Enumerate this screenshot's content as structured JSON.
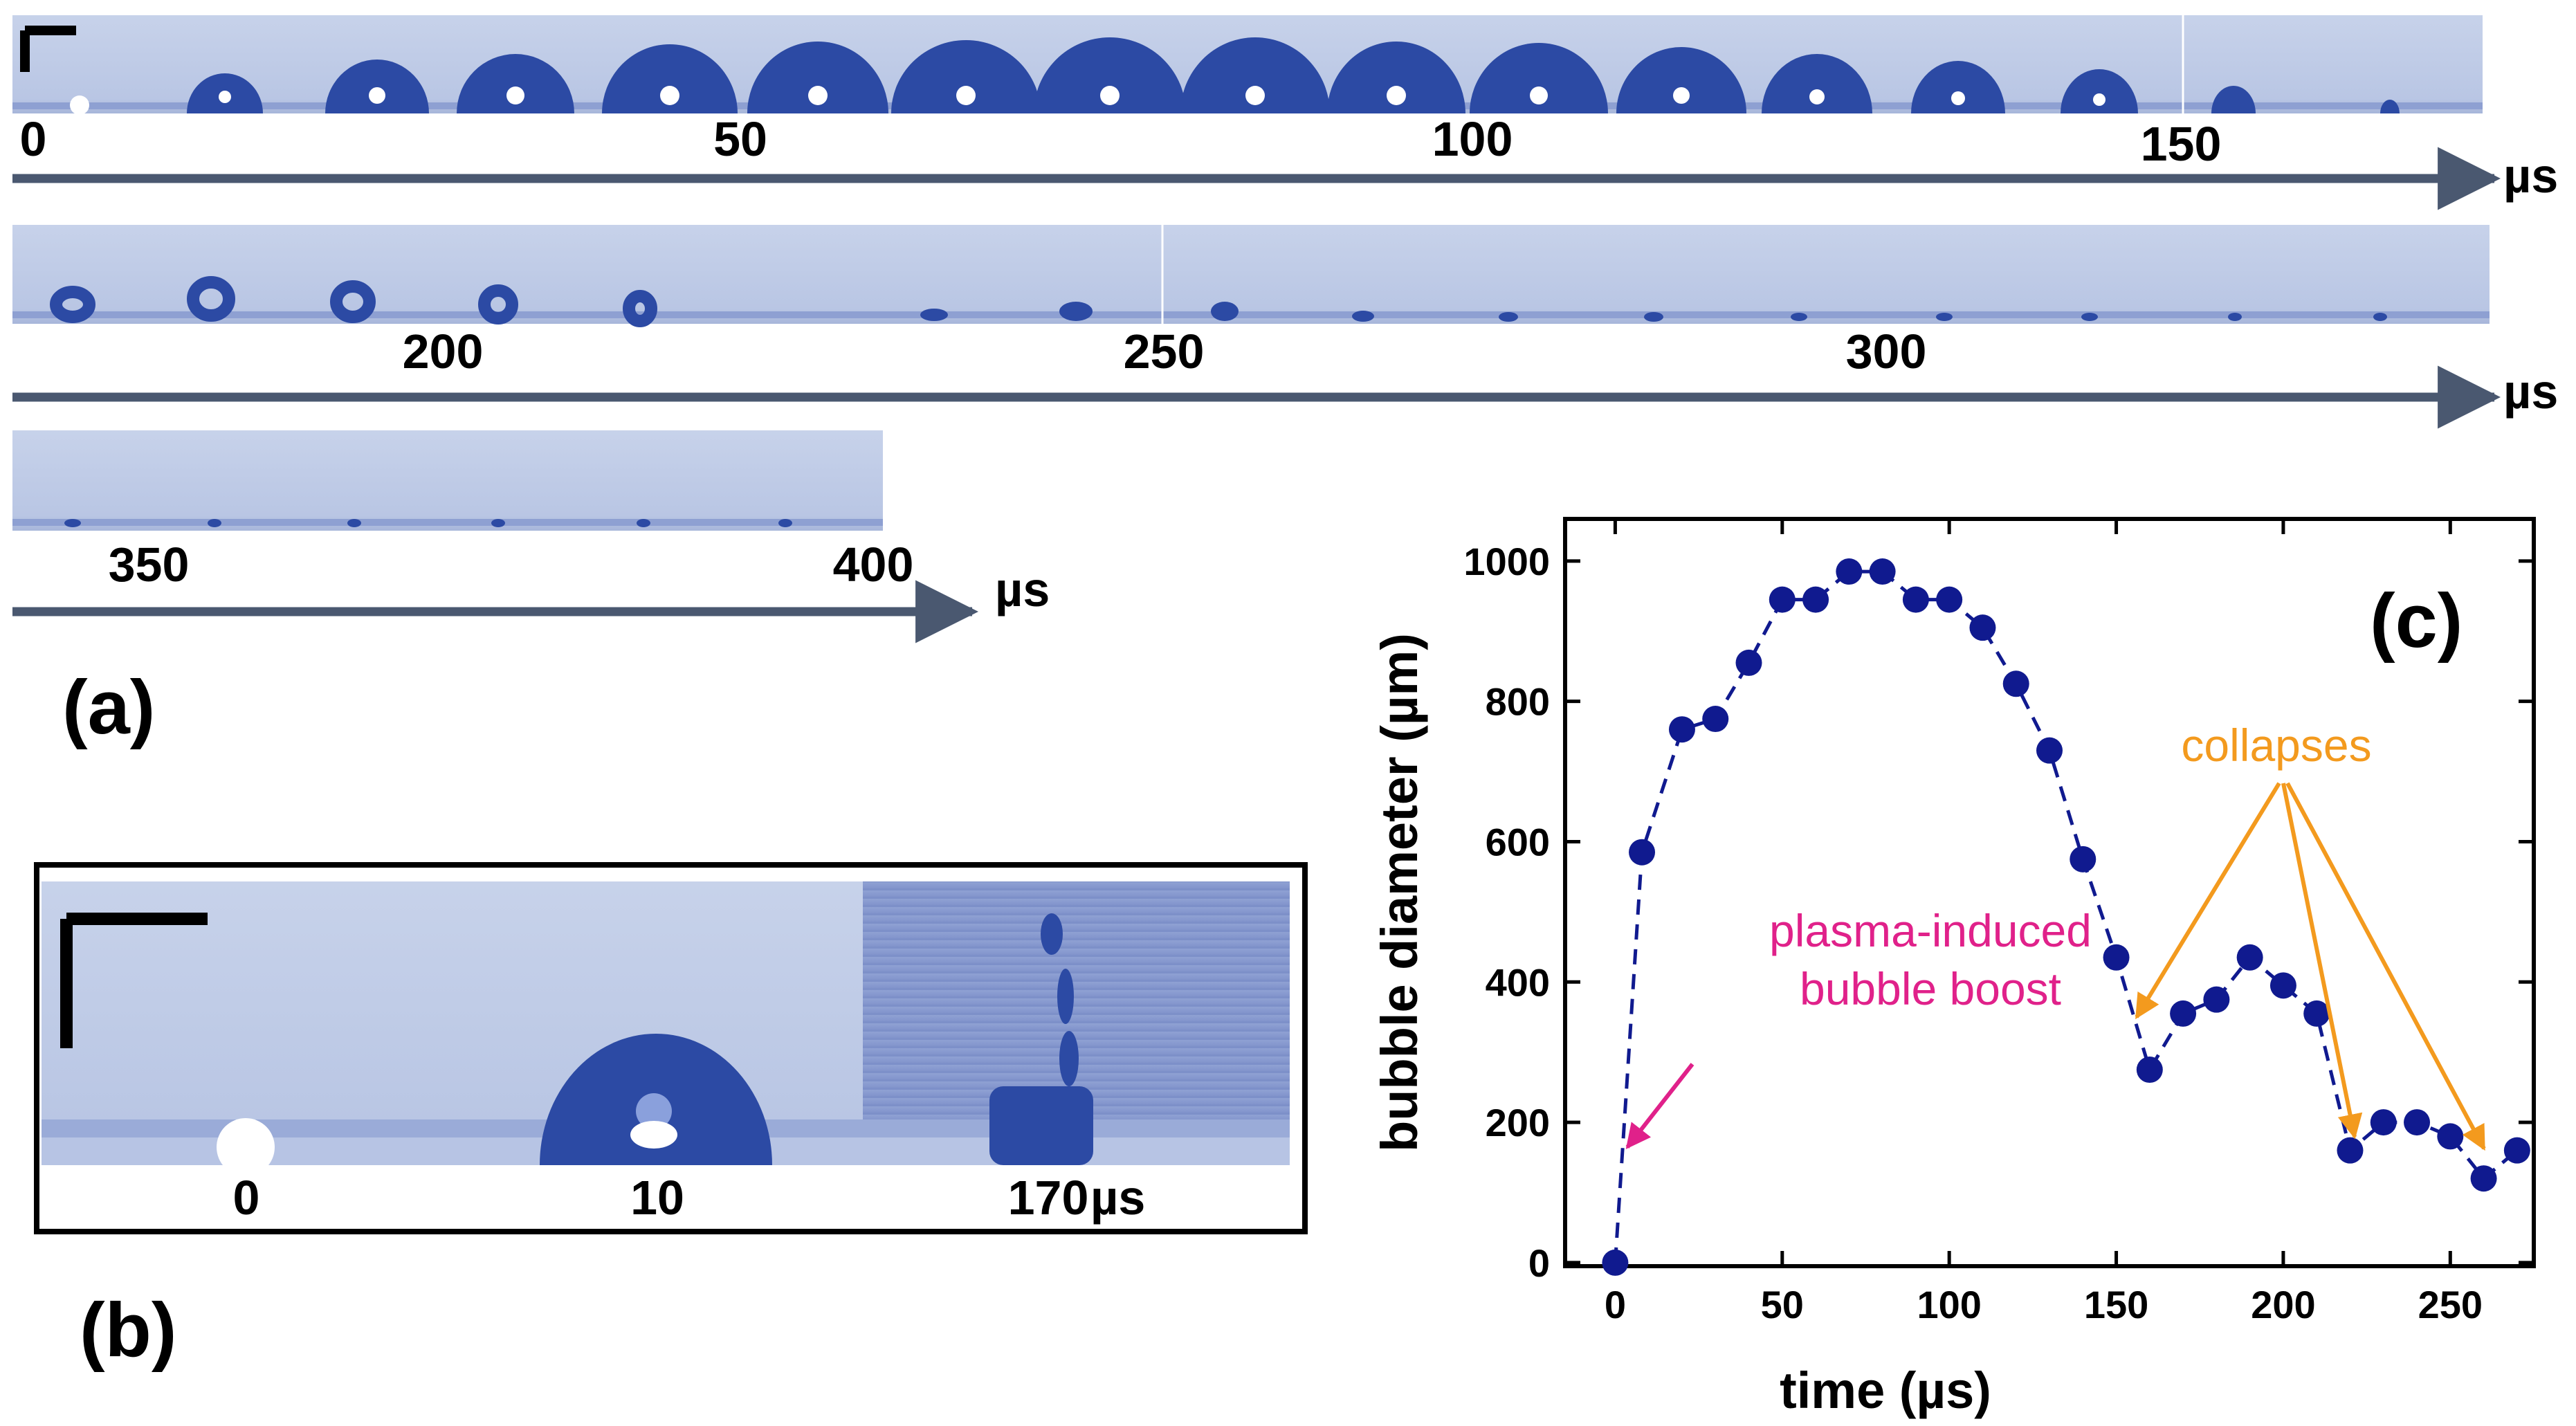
{
  "panel_a": {
    "label": "(a)",
    "unit": "µs",
    "rows": [
      {
        "ticks": [
          "0",
          "50",
          "100",
          "150"
        ]
      },
      {
        "ticks": [
          "200",
          "250",
          "300"
        ]
      },
      {
        "ticks": [
          "350",
          "400"
        ]
      }
    ]
  },
  "panel_b": {
    "label": "(b)",
    "frame_labels": [
      "0",
      "10",
      "170"
    ],
    "unit": "µs"
  },
  "colors": {
    "marker": "#101a8f",
    "arrow_axis": "#4a5870",
    "annotation_orange": "#f39a1e",
    "annotation_pink": "#e0218a",
    "frame_bg": "#c9d3ea",
    "bubble": "#2c4aa4"
  },
  "chart_data": {
    "type": "scatter",
    "panel_label": "(c)",
    "xlabel": "time (µs)",
    "ylabel": "bubble diameter (µm)",
    "xlim": [
      -15,
      275
    ],
    "ylim": [
      -5,
      1060
    ],
    "xticks": [
      0,
      50,
      100,
      150,
      200,
      250
    ],
    "yticks": [
      0,
      200,
      400,
      600,
      800,
      1000
    ],
    "grid": false,
    "line_style": "dashed",
    "x": [
      0,
      8,
      20,
      30,
      40,
      50,
      60,
      70,
      80,
      90,
      100,
      110,
      120,
      130,
      140,
      150,
      160,
      170,
      180,
      190,
      200,
      210,
      220,
      230,
      240,
      250,
      260,
      270
    ],
    "y": [
      0,
      585,
      760,
      775,
      855,
      945,
      945,
      985,
      985,
      945,
      945,
      905,
      825,
      730,
      575,
      435,
      275,
      355,
      375,
      435,
      395,
      355,
      160,
      200,
      200,
      180,
      120,
      160
    ],
    "annotations": [
      {
        "text_lines": [
          "plasma-induced",
          "bubble boost"
        ],
        "color_key": "annotation_pink"
      },
      {
        "text_lines": [
          "collapses"
        ],
        "color_key": "annotation_orange"
      }
    ]
  }
}
